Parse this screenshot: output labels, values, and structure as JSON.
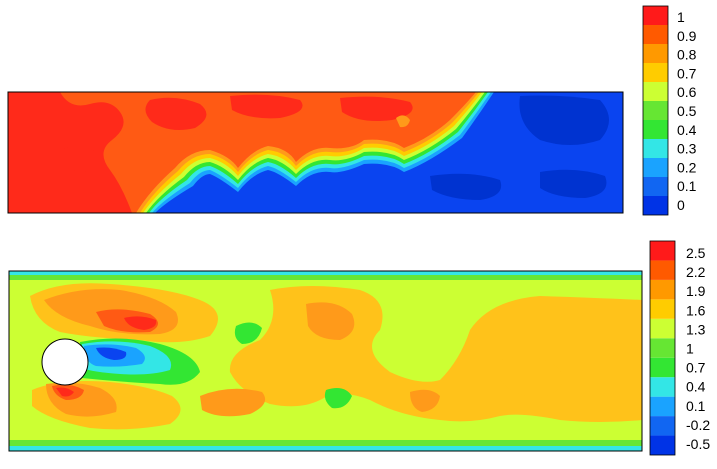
{
  "colorbar_top": {
    "swatch_colors": [
      "#0033e6",
      "#1166f2",
      "#1aa3ff",
      "#33e6e6",
      "#33e633",
      "#66e633",
      "#ccff33",
      "#ffcc00",
      "#ff9900",
      "#ff5a00",
      "#ff1a1a"
    ],
    "tick_labels": [
      "1",
      "0.9",
      "0.8",
      "0.7",
      "0.6",
      "0.5",
      "0.4",
      "0.3",
      "0.2",
      "0.1",
      "0"
    ],
    "range": [
      0,
      1
    ]
  },
  "colorbar_bottom": {
    "swatch_colors": [
      "#0033e6",
      "#1166f2",
      "#1aa3ff",
      "#33e6e6",
      "#33e633",
      "#66e633",
      "#ccff33",
      "#ffcc00",
      "#ff9900",
      "#ff5a00",
      "#ff1a1a"
    ],
    "tick_labels": [
      "2.5",
      "2.2",
      "1.9",
      "1.6",
      "1.3",
      "1",
      "0.7",
      "0.4",
      "0.1",
      "-0.2",
      "-0.5"
    ],
    "range": [
      -0.5,
      2.5
    ]
  },
  "palette": {
    "red": "#ff2a1a",
    "orange_red": "#ff5a14",
    "orange": "#ff9a1a",
    "yellow_orange": "#ffc21a",
    "yellow": "#ffcc00",
    "lime": "#ccff33",
    "green": "#33e633",
    "cyan": "#33e6e6",
    "light_blue": "#1aa3ff",
    "blue": "#0a44f0",
    "deep_blue": "#0033e6"
  }
}
